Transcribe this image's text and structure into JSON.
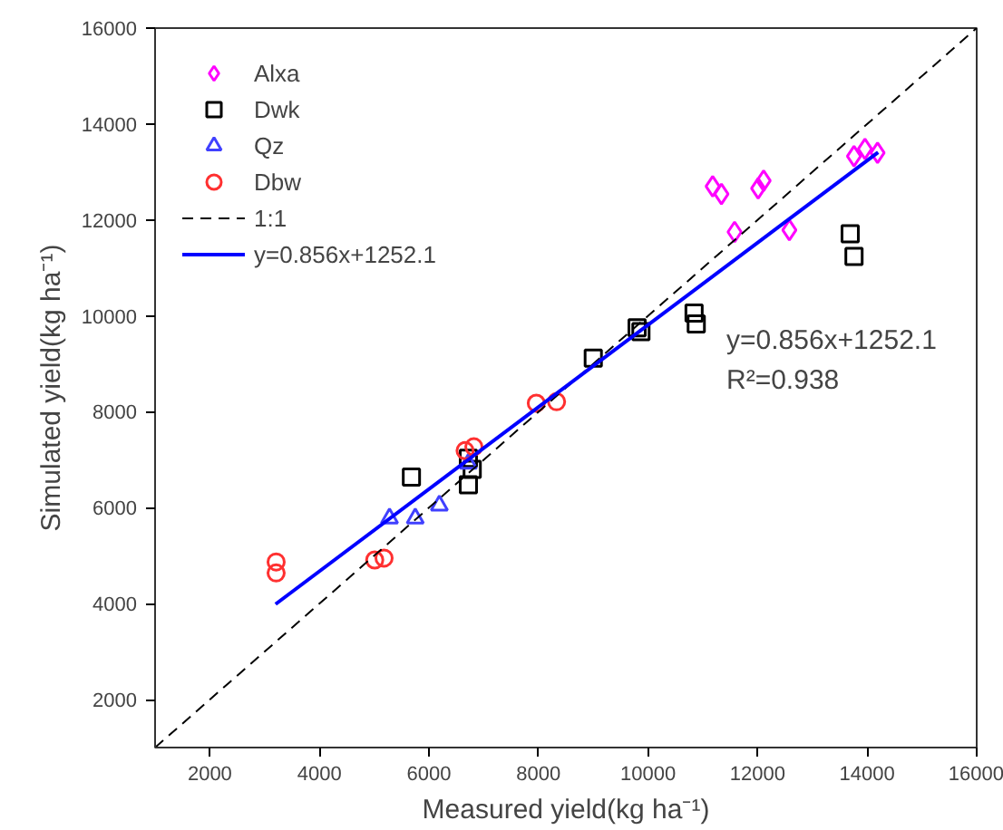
{
  "chart_data": {
    "type": "scatter",
    "xlabel": "Measured yield(kg ha⁻¹)",
    "ylabel": "Simulated yield(kg ha⁻¹)",
    "xlim": [
      1000,
      16000
    ],
    "ylim": [
      1000,
      16000
    ],
    "xticks": [
      2000,
      4000,
      6000,
      8000,
      10000,
      12000,
      14000,
      16000
    ],
    "yticks": [
      2000,
      4000,
      6000,
      8000,
      10000,
      12000,
      14000,
      16000
    ],
    "grid": false,
    "legend": "top left",
    "annotations": [
      "y=0.856x+1252.1",
      "R²=0.938"
    ],
    "series": [
      {
        "name": "Alxa",
        "color": "#ff00ff",
        "marker": "diamond",
        "x": [
          11180,
          11340,
          11580,
          12010,
          12110,
          12580,
          13760,
          13960,
          14190
        ],
        "values": [
          12700,
          12540,
          11750,
          12660,
          12820,
          11790,
          13330,
          13480,
          13400
        ]
      },
      {
        "name": "Dwk",
        "color": "#000000",
        "marker": "square",
        "x": [
          13690,
          13760,
          10840,
          10880,
          9800,
          9870,
          9000,
          5680,
          6720,
          6790,
          6720
        ],
        "values": [
          11710,
          11240,
          10060,
          9830,
          9750,
          9670,
          9120,
          6640,
          7030,
          6800,
          6480
        ]
      },
      {
        "name": "Qz",
        "color": "#4040ff",
        "marker": "triangle",
        "x": [
          5280,
          5750,
          6190,
          6720
        ],
        "values": [
          5780,
          5780,
          6050,
          6920
        ]
      },
      {
        "name": "Dbw",
        "color": "#ff3030",
        "marker": "circle",
        "x": [
          3210,
          3210,
          5010,
          5180,
          6660,
          6820,
          7960,
          8330
        ],
        "values": [
          4870,
          4640,
          4910,
          4950,
          7190,
          7270,
          8180,
          8210
        ]
      },
      {
        "name": "1:1",
        "type": "line",
        "color": "#000000",
        "line_style": "dashed",
        "marker": "none",
        "x": [
          1000,
          16000
        ],
        "values": [
          1000,
          16000
        ]
      },
      {
        "name": "y=0.856x+1252.1",
        "type": "line",
        "color": "#0000ff",
        "line_style": "solid",
        "marker": "none",
        "x": [
          3200,
          14200
        ],
        "values": [
          3990,
          13410
        ]
      }
    ]
  }
}
